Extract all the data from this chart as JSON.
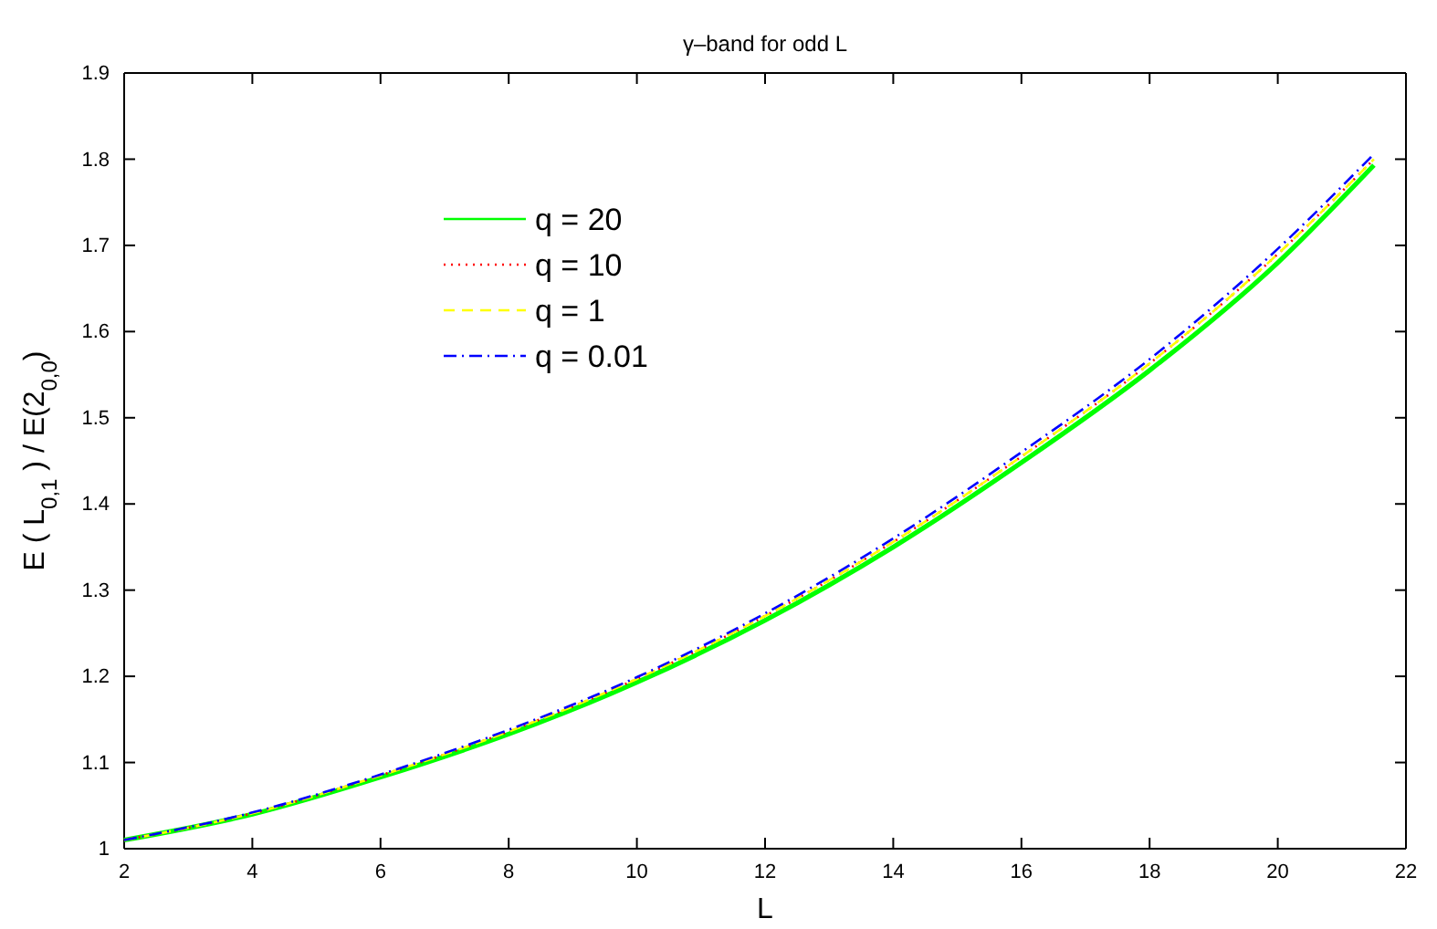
{
  "chart_data": {
    "type": "line",
    "title": "γ–band for odd L",
    "xlabel": "L",
    "ylabel": "E ( L$_{0,1}$ ) / E(2$_{0,0}$)",
    "x": [
      2,
      4,
      6,
      8,
      10,
      12,
      14,
      16,
      18,
      20,
      21.5
    ],
    "xlim": [
      2,
      22
    ],
    "xticks": [
      2,
      4,
      6,
      8,
      10,
      12,
      14,
      16,
      18,
      20,
      22
    ],
    "ylim": [
      1,
      1.9
    ],
    "yticks": [
      1,
      1.1,
      1.2,
      1.3,
      1.4,
      1.5,
      1.6,
      1.7,
      1.8,
      1.9
    ],
    "grid": false,
    "legend": "top left",
    "series": [
      {
        "name": "q = 20",
        "color": "#00ff00",
        "line_style": "solid",
        "values": [
          1.01,
          1.04,
          1.083,
          1.133,
          1.193,
          1.265,
          1.35,
          1.448,
          1.555,
          1.68,
          1.793
        ]
      },
      {
        "name": "q = 10",
        "color": "#ff0000",
        "line_style": "dotted",
        "values": [
          1.01,
          1.041,
          1.085,
          1.136,
          1.197,
          1.27,
          1.356,
          1.455,
          1.563,
          1.69,
          1.8
        ]
      },
      {
        "name": "q = 1",
        "color": "#ffff00",
        "line_style": "dashed",
        "values": [
          1.01,
          1.041,
          1.085,
          1.136,
          1.197,
          1.27,
          1.356,
          1.455,
          1.563,
          1.69,
          1.8
        ]
      },
      {
        "name": "q = 0.01",
        "color": "#0000ff",
        "line_style": "dashdot",
        "values": [
          1.01,
          1.042,
          1.086,
          1.138,
          1.199,
          1.273,
          1.36,
          1.46,
          1.568,
          1.696,
          1.806
        ]
      }
    ]
  }
}
